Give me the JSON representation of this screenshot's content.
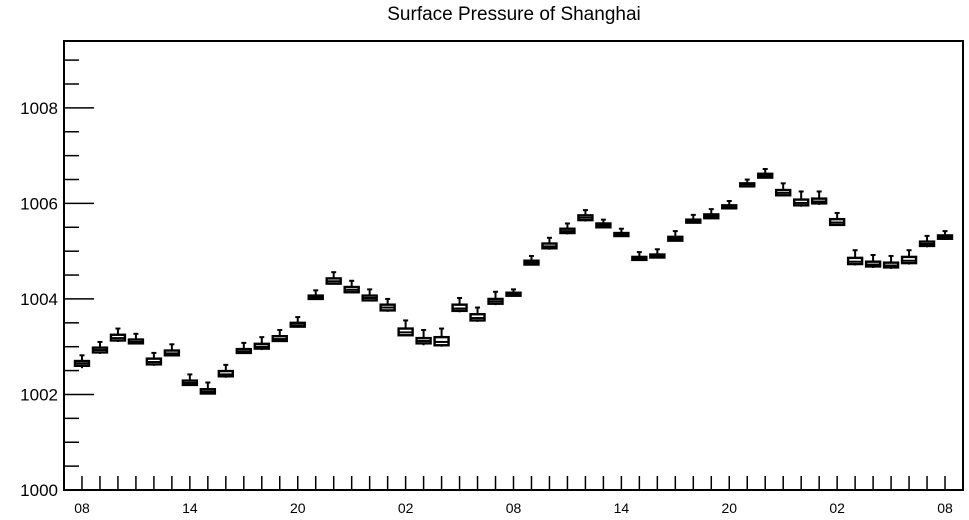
{
  "chart_data": {
    "type": "boxplot",
    "title": "Surface Pressure of Shanghai",
    "xlabel": "",
    "ylabel": "",
    "ylim": [
      1000,
      1009.4
    ],
    "yticks": [
      1000,
      1002,
      1004,
      1006,
      1008
    ],
    "x_tick_labels": [
      "08",
      "14",
      "20",
      "02",
      "08",
      "14",
      "20",
      "02",
      "08"
    ],
    "x_tick_hours": [
      0,
      6,
      12,
      18,
      24,
      30,
      36,
      42,
      48
    ],
    "x_range_hours": [
      -1,
      49
    ],
    "grid": false,
    "boxes": [
      {
        "hour": 0,
        "min": 1002.55,
        "q1": 1002.6,
        "median": 1002.65,
        "q3": 1002.7,
        "max": 1002.82
      },
      {
        "hour": 1,
        "min": 1002.85,
        "q1": 1002.88,
        "median": 1002.93,
        "q3": 1002.98,
        "max": 1003.1
      },
      {
        "hour": 2,
        "min": 1003.1,
        "q1": 1003.13,
        "median": 1003.18,
        "q3": 1003.25,
        "max": 1003.38
      },
      {
        "hour": 3,
        "min": 1003.05,
        "q1": 1003.07,
        "median": 1003.1,
        "q3": 1003.15,
        "max": 1003.27
      },
      {
        "hour": 4,
        "min": 1002.6,
        "q1": 1002.63,
        "median": 1002.68,
        "q3": 1002.75,
        "max": 1002.87
      },
      {
        "hour": 5,
        "min": 1002.8,
        "q1": 1002.82,
        "median": 1002.86,
        "q3": 1002.92,
        "max": 1003.05
      },
      {
        "hour": 6,
        "min": 1002.18,
        "q1": 1002.2,
        "median": 1002.24,
        "q3": 1002.29,
        "max": 1002.42
      },
      {
        "hour": 7,
        "min": 1002.0,
        "q1": 1002.02,
        "median": 1002.06,
        "q3": 1002.11,
        "max": 1002.25
      },
      {
        "hour": 8,
        "min": 1002.35,
        "q1": 1002.38,
        "median": 1002.42,
        "q3": 1002.49,
        "max": 1002.62
      },
      {
        "hour": 9,
        "min": 1002.85,
        "q1": 1002.87,
        "median": 1002.9,
        "q3": 1002.95,
        "max": 1003.08
      },
      {
        "hour": 10,
        "min": 1002.93,
        "q1": 1002.96,
        "median": 1003.0,
        "q3": 1003.06,
        "max": 1003.2
      },
      {
        "hour": 11,
        "min": 1003.1,
        "q1": 1003.12,
        "median": 1003.16,
        "q3": 1003.22,
        "max": 1003.35
      },
      {
        "hour": 12,
        "min": 1003.4,
        "q1": 1003.42,
        "median": 1003.45,
        "q3": 1003.5,
        "max": 1003.62
      },
      {
        "hour": 13,
        "min": 1003.98,
        "q1": 1004.0,
        "median": 1004.03,
        "q3": 1004.07,
        "max": 1004.18
      },
      {
        "hour": 14,
        "min": 1004.3,
        "q1": 1004.32,
        "median": 1004.37,
        "q3": 1004.43,
        "max": 1004.56
      },
      {
        "hour": 15,
        "min": 1004.12,
        "q1": 1004.14,
        "median": 1004.19,
        "q3": 1004.25,
        "max": 1004.38
      },
      {
        "hour": 16,
        "min": 1003.95,
        "q1": 1003.97,
        "median": 1004.02,
        "q3": 1004.07,
        "max": 1004.2
      },
      {
        "hour": 17,
        "min": 1003.73,
        "q1": 1003.76,
        "median": 1003.82,
        "q3": 1003.88,
        "max": 1004.0
      },
      {
        "hour": 18,
        "min": 1003.22,
        "q1": 1003.24,
        "median": 1003.3,
        "q3": 1003.38,
        "max": 1003.55
      },
      {
        "hour": 19,
        "min": 1003.03,
        "q1": 1003.07,
        "median": 1003.12,
        "q3": 1003.18,
        "max": 1003.35
      },
      {
        "hour": 20,
        "min": 1003.0,
        "q1": 1003.03,
        "median": 1003.1,
        "q3": 1003.2,
        "max": 1003.38
      },
      {
        "hour": 21,
        "min": 1003.72,
        "q1": 1003.75,
        "median": 1003.8,
        "q3": 1003.88,
        "max": 1004.02
      },
      {
        "hour": 22,
        "min": 1003.52,
        "q1": 1003.55,
        "median": 1003.6,
        "q3": 1003.68,
        "max": 1003.82
      },
      {
        "hour": 23,
        "min": 1003.87,
        "q1": 1003.9,
        "median": 1003.95,
        "q3": 1004.0,
        "max": 1004.15
      },
      {
        "hour": 24,
        "min": 1004.05,
        "q1": 1004.07,
        "median": 1004.1,
        "q3": 1004.13,
        "max": 1004.2
      },
      {
        "hour": 25,
        "min": 1004.7,
        "q1": 1004.72,
        "median": 1004.76,
        "q3": 1004.8,
        "max": 1004.9
      },
      {
        "hour": 26,
        "min": 1005.03,
        "q1": 1005.06,
        "median": 1005.1,
        "q3": 1005.16,
        "max": 1005.28
      },
      {
        "hour": 27,
        "min": 1005.35,
        "q1": 1005.38,
        "median": 1005.42,
        "q3": 1005.47,
        "max": 1005.58
      },
      {
        "hour": 28,
        "min": 1005.62,
        "q1": 1005.65,
        "median": 1005.7,
        "q3": 1005.75,
        "max": 1005.86
      },
      {
        "hour": 29,
        "min": 1005.48,
        "q1": 1005.5,
        "median": 1005.54,
        "q3": 1005.58,
        "max": 1005.66
      },
      {
        "hour": 30,
        "min": 1005.3,
        "q1": 1005.32,
        "median": 1005.35,
        "q3": 1005.38,
        "max": 1005.47
      },
      {
        "hour": 31,
        "min": 1004.8,
        "q1": 1004.82,
        "median": 1004.85,
        "q3": 1004.88,
        "max": 1004.98
      },
      {
        "hour": 32,
        "min": 1004.85,
        "q1": 1004.87,
        "median": 1004.9,
        "q3": 1004.93,
        "max": 1005.04
      },
      {
        "hour": 33,
        "min": 1005.2,
        "q1": 1005.22,
        "median": 1005.26,
        "q3": 1005.3,
        "max": 1005.42
      },
      {
        "hour": 34,
        "min": 1005.58,
        "q1": 1005.6,
        "median": 1005.63,
        "q3": 1005.66,
        "max": 1005.76
      },
      {
        "hour": 35,
        "min": 1005.67,
        "q1": 1005.69,
        "median": 1005.73,
        "q3": 1005.77,
        "max": 1005.88
      },
      {
        "hour": 36,
        "min": 1005.88,
        "q1": 1005.9,
        "median": 1005.93,
        "q3": 1005.96,
        "max": 1006.05
      },
      {
        "hour": 37,
        "min": 1006.35,
        "q1": 1006.37,
        "median": 1006.4,
        "q3": 1006.42,
        "max": 1006.5
      },
      {
        "hour": 38,
        "min": 1006.52,
        "q1": 1006.54,
        "median": 1006.58,
        "q3": 1006.62,
        "max": 1006.72
      },
      {
        "hour": 39,
        "min": 1006.15,
        "q1": 1006.17,
        "median": 1006.22,
        "q3": 1006.28,
        "max": 1006.42
      },
      {
        "hour": 40,
        "min": 1005.93,
        "q1": 1005.96,
        "median": 1006.01,
        "q3": 1006.08,
        "max": 1006.25
      },
      {
        "hour": 41,
        "min": 1005.97,
        "q1": 1006.0,
        "median": 1006.04,
        "q3": 1006.1,
        "max": 1006.25
      },
      {
        "hour": 42,
        "min": 1005.53,
        "q1": 1005.55,
        "median": 1005.6,
        "q3": 1005.67,
        "max": 1005.8
      },
      {
        "hour": 43,
        "min": 1004.7,
        "q1": 1004.73,
        "median": 1004.78,
        "q3": 1004.86,
        "max": 1005.02
      },
      {
        "hour": 44,
        "min": 1004.65,
        "q1": 1004.68,
        "median": 1004.72,
        "q3": 1004.78,
        "max": 1004.92
      },
      {
        "hour": 45,
        "min": 1004.63,
        "q1": 1004.66,
        "median": 1004.7,
        "q3": 1004.76,
        "max": 1004.9
      },
      {
        "hour": 46,
        "min": 1004.72,
        "q1": 1004.75,
        "median": 1004.8,
        "q3": 1004.88,
        "max": 1005.02
      },
      {
        "hour": 47,
        "min": 1005.08,
        "q1": 1005.11,
        "median": 1005.15,
        "q3": 1005.2,
        "max": 1005.32
      },
      {
        "hour": 48,
        "min": 1005.24,
        "q1": 1005.26,
        "median": 1005.3,
        "q3": 1005.33,
        "max": 1005.42
      }
    ]
  }
}
